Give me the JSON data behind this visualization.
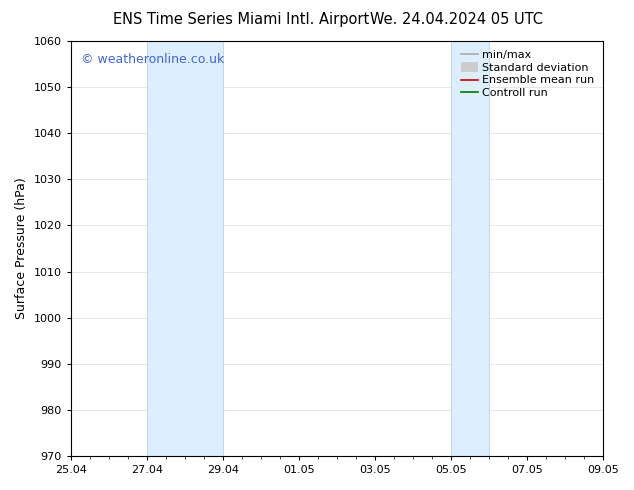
{
  "title_left": "ENS Time Series Miami Intl. Airport",
  "title_right": "We. 24.04.2024 05 UTC",
  "ylabel": "Surface Pressure (hPa)",
  "ylim": [
    970,
    1060
  ],
  "yticks": [
    970,
    980,
    990,
    1000,
    1010,
    1020,
    1030,
    1040,
    1050,
    1060
  ],
  "xtick_labels": [
    "25.04",
    "27.04",
    "29.04",
    "01.05",
    "03.05",
    "05.05",
    "07.05",
    "09.05"
  ],
  "xtick_positions": [
    0,
    2,
    4,
    6,
    8,
    10,
    12,
    14
  ],
  "x_min": 0,
  "x_max": 14,
  "shade_regions": [
    {
      "start": 2,
      "end": 4
    },
    {
      "start": 10,
      "end": 11
    }
  ],
  "shade_color": "#ddeeff",
  "shade_edge_color": "#b8d4e8",
  "background_color": "#ffffff",
  "watermark_text": "© weatheronline.co.uk",
  "watermark_color": "#4466cc",
  "legend_entries": [
    {
      "label": "min/max",
      "color": "#aaaaaa",
      "lw": 1.2,
      "style": "solid"
    },
    {
      "label": "Standard deviation",
      "color": "#cccccc",
      "lw": 7,
      "style": "solid"
    },
    {
      "label": "Ensemble mean run",
      "color": "#cc0000",
      "lw": 1.2,
      "style": "solid"
    },
    {
      "label": "Controll run",
      "color": "#007700",
      "lw": 1.2,
      "style": "solid"
    }
  ],
  "grid_color": "#dddddd",
  "grid_lw": 0.5,
  "title_fontsize": 10.5,
  "axis_label_fontsize": 9,
  "tick_fontsize": 8,
  "watermark_fontsize": 9,
  "legend_fontsize": 8
}
